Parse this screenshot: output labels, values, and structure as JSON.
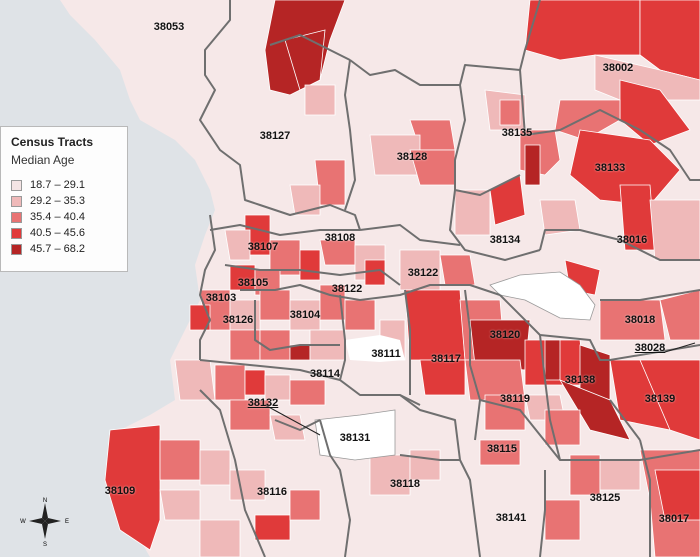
{
  "legend": {
    "title": "Census Tracts",
    "subtitle": "Median Age",
    "classes": [
      {
        "label": "18.7 – 29.1",
        "color": "#f4e4e4"
      },
      {
        "label": "29.2 – 35.3",
        "color": "#efb9b9"
      },
      {
        "label": "35.4 – 40.4",
        "color": "#e87373"
      },
      {
        "label": "40.5 – 45.6",
        "color": "#e03a3a"
      },
      {
        "label": "45.7 – 68.2",
        "color": "#b52525"
      }
    ]
  },
  "compass": {
    "n": "N",
    "s": "S",
    "e": "E",
    "w": "W"
  },
  "zip_codes": [
    {
      "code": "38053",
      "id": "zip-38053"
    },
    {
      "code": "38002",
      "id": "zip-38002"
    },
    {
      "code": "38127",
      "id": "zip-38127"
    },
    {
      "code": "38135",
      "id": "zip-38135"
    },
    {
      "code": "38128",
      "id": "zip-38128"
    },
    {
      "code": "38133",
      "id": "zip-38133"
    },
    {
      "code": "38108",
      "id": "zip-38108"
    },
    {
      "code": "38107",
      "id": "zip-38107"
    },
    {
      "code": "38134",
      "id": "zip-38134"
    },
    {
      "code": "38016",
      "id": "zip-38016"
    },
    {
      "code": "38122",
      "id": "zip-38122-east"
    },
    {
      "code": "38105",
      "id": "zip-38105"
    },
    {
      "code": "38122",
      "id": "zip-38122-west"
    },
    {
      "code": "38103",
      "id": "zip-38103"
    },
    {
      "code": "38104",
      "id": "zip-38104"
    },
    {
      "code": "38126",
      "id": "zip-38126"
    },
    {
      "code": "38120",
      "id": "zip-38120"
    },
    {
      "code": "38018",
      "id": "zip-38018"
    },
    {
      "code": "38028",
      "id": "zip-38028"
    },
    {
      "code": "38111",
      "id": "zip-38111"
    },
    {
      "code": "38117",
      "id": "zip-38117"
    },
    {
      "code": "38138",
      "id": "zip-38138"
    },
    {
      "code": "38114",
      "id": "zip-38114"
    },
    {
      "code": "38119",
      "id": "zip-38119"
    },
    {
      "code": "38139",
      "id": "zip-38139"
    },
    {
      "code": "38132",
      "id": "zip-38132"
    },
    {
      "code": "38131",
      "id": "zip-38131"
    },
    {
      "code": "38115",
      "id": "zip-38115"
    },
    {
      "code": "38109",
      "id": "zip-38109"
    },
    {
      "code": "38116",
      "id": "zip-38116"
    },
    {
      "code": "38118",
      "id": "zip-38118"
    },
    {
      "code": "38125",
      "id": "zip-38125"
    },
    {
      "code": "38141",
      "id": "zip-38141"
    },
    {
      "code": "38017",
      "id": "zip-38017"
    }
  ]
}
